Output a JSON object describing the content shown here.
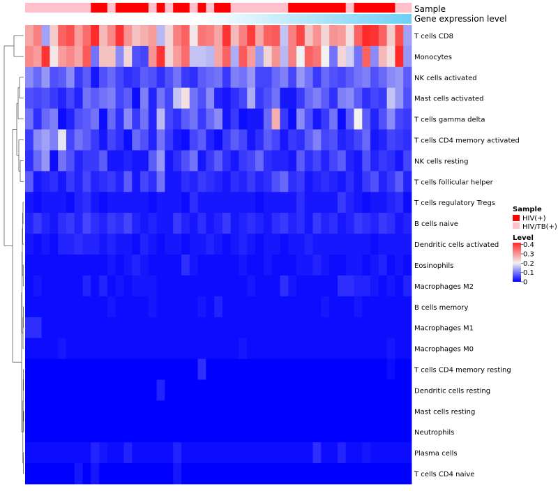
{
  "chart_data": {
    "type": "heatmap",
    "annotation_tracks": [
      {
        "name": "Sample",
        "kind": "categorical"
      },
      {
        "name": "Gene expression level",
        "kind": "continuous"
      }
    ],
    "sample_groups": [
      "HIV/TB(+)",
      "HIV/TB(+)",
      "HIV/TB(+)",
      "HIV/TB(+)",
      "HIV/TB(+)",
      "HIV/TB(+)",
      "HIV/TB(+)",
      "HIV/TB(+)",
      "HIV(+)",
      "HIV(+)",
      "HIV/TB(+)",
      "HIV(+)",
      "HIV(+)",
      "HIV(+)",
      "HIV(+)",
      "HIV/TB(+)",
      "HIV(+)",
      "HIV/TB(+)",
      "HIV(+)",
      "HIV(+)",
      "HIV/TB(+)",
      "HIV(+)",
      "HIV/TB(+)",
      "HIV(+)",
      "HIV(+)",
      "HIV/TB(+)",
      "HIV/TB(+)",
      "HIV/TB(+)",
      "HIV/TB(+)",
      "HIV/TB(+)",
      "HIV/TB(+)",
      "HIV/TB(+)",
      "HIV(+)",
      "HIV(+)",
      "HIV(+)",
      "HIV(+)",
      "HIV(+)",
      "HIV(+)",
      "HIV(+)",
      "HIV/TB(+)",
      "HIV(+)",
      "HIV(+)",
      "HIV(+)",
      "HIV(+)",
      "HIV(+)",
      "HIV/TB(+)",
      "HIV/TB(+)"
    ],
    "gene_expression_level": "increasing left to right",
    "rows": [
      "T cells CD8",
      "Monocytes",
      "NK cells activated",
      "Mast cells activated",
      "T cells gamma delta",
      "T cells CD4 memory activated",
      "NK cells resting",
      "T cells follicular helper",
      "T cells regulatory  Tregs",
      "B cells naive",
      "Dendritic cells activated",
      "Eosinophils",
      "Macrophages M2",
      "B cells memory",
      "Macrophages M1",
      "Macrophages M0",
      "T cells CD4 memory resting",
      "Dendritic cells resting",
      "Mast cells resting",
      "Neutrophils",
      "Plasma cells",
      "T cells CD4 naive"
    ],
    "n_columns": 47,
    "colorscale": {
      "title": "Level",
      "ticks": [
        "0.4",
        "0.3",
        "0.2",
        "0.1",
        "0"
      ],
      "tick_values": [
        0.4,
        0.3,
        0.2,
        0.1,
        0
      ],
      "range": [
        0,
        0.42
      ],
      "colors": [
        "#0000ff",
        "#f2f2f2",
        "#ff2a2a"
      ]
    },
    "values": [
      [
        0.29,
        0.33,
        0.14,
        0.25,
        0.36,
        0.38,
        0.3,
        0.35,
        0.42,
        0.27,
        0.32,
        0.41,
        0.31,
        0.26,
        0.28,
        0.3,
        0.16,
        0.24,
        0.33,
        0.36,
        0.22,
        0.34,
        0.33,
        0.29,
        0.41,
        0.27,
        0.33,
        0.4,
        0.29,
        0.36,
        0.37,
        0.17,
        0.33,
        0.39,
        0.26,
        0.31,
        0.24,
        0.31,
        0.3,
        0.23,
        0.36,
        0.42,
        0.41,
        0.36,
        0.25,
        0.38,
        0.14
      ],
      [
        0.32,
        0.3,
        0.41,
        0.22,
        0.3,
        0.32,
        0.29,
        0.37,
        0.1,
        0.26,
        0.26,
        0.12,
        0.24,
        0.07,
        0.06,
        0.31,
        0.41,
        0.24,
        0.3,
        0.35,
        0.17,
        0.17,
        0.16,
        0.29,
        0.36,
        0.15,
        0.37,
        0.3,
        0.13,
        0.24,
        0.31,
        0.16,
        0.33,
        0.21,
        0.36,
        0.34,
        0.21,
        0.1,
        0.24,
        0.18,
        0.1,
        0.36,
        0.12,
        0.27,
        0.23,
        0.42,
        0.13
      ],
      [
        0.12,
        0.09,
        0.13,
        0.07,
        0.08,
        0.12,
        0.05,
        0.08,
        0.02,
        0.07,
        0.09,
        0.06,
        0.04,
        0.05,
        0.08,
        0.07,
        0.04,
        0.07,
        0.1,
        0.05,
        0.04,
        0.08,
        0.09,
        0.1,
        0.05,
        0.11,
        0.1,
        0.13,
        0.06,
        0.06,
        0.09,
        0.11,
        0.06,
        0.13,
        0.1,
        0.05,
        0.09,
        0.07,
        0.06,
        0.08,
        0.1,
        0.11,
        0.07,
        0.09,
        0.12,
        0.13,
        0.08
      ],
      [
        0.07,
        0.06,
        0.07,
        0.05,
        0.03,
        0.06,
        0.03,
        0.1,
        0.08,
        0.1,
        0.11,
        0.06,
        0.08,
        0.01,
        0.11,
        0.03,
        0.1,
        0.06,
        0.17,
        0.23,
        0.1,
        0.07,
        0.12,
        0.03,
        0.02,
        0.04,
        0.06,
        0.15,
        0.05,
        0.07,
        0.1,
        0.02,
        0.02,
        0.05,
        0.09,
        0.11,
        0.08,
        0.04,
        0.11,
        0.12,
        0.08,
        0.04,
        0.06,
        0.05,
        0.17,
        0.13,
        0.07
      ],
      [
        0.1,
        0.04,
        0.09,
        0.11,
        0.01,
        0.03,
        0.07,
        0.08,
        0.1,
        0.01,
        0.09,
        0.04,
        0.12,
        0.05,
        0.1,
        0.03,
        0.16,
        0.06,
        0.04,
        0.08,
        0.1,
        0.05,
        0.09,
        0.12,
        0.02,
        0.05,
        0.01,
        0.02,
        0.02,
        0.09,
        0.28,
        0.05,
        0.01,
        0.12,
        0.07,
        0.02,
        0.05,
        0.1,
        0.01,
        0.08,
        0.21,
        0.08,
        0.03,
        0.07,
        0.12,
        0.06,
        0.05
      ],
      [
        0.05,
        0.12,
        0.14,
        0.11,
        0.2,
        0.06,
        0.1,
        0.08,
        0.05,
        0.02,
        0.06,
        0.04,
        0.01,
        0.09,
        0.07,
        0.03,
        0.1,
        0.05,
        0.02,
        0.01,
        0.06,
        0.08,
        0.03,
        0.01,
        0.05,
        0.08,
        0.06,
        0.02,
        0.04,
        0.08,
        0.06,
        0.02,
        0.05,
        0.04,
        0.08,
        0.11,
        0.06,
        0.07,
        0.03,
        0.04,
        0.06,
        0.09,
        0.02,
        0.03,
        0.06,
        0.05,
        0.04
      ],
      [
        0.04,
        0.09,
        0.13,
        0.01,
        0.1,
        0.07,
        0.03,
        0.05,
        0.05,
        0.08,
        0.02,
        0.02,
        0.03,
        0.02,
        0.02,
        0.08,
        0.13,
        0.02,
        0.04,
        0.07,
        0.1,
        0.02,
        0.05,
        0.08,
        0.04,
        0.02,
        0.05,
        0.06,
        0.09,
        0.04,
        0.03,
        0.03,
        0.02,
        0.08,
        0.04,
        0.06,
        0.03,
        0.06,
        0.08,
        0.03,
        0.02,
        0.07,
        0.03,
        0.05,
        0.04,
        0.02,
        0.06
      ],
      [
        0.08,
        0.02,
        0.03,
        0.04,
        0.02,
        0.05,
        0.03,
        0.06,
        0.03,
        0.04,
        0.05,
        0.03,
        0.08,
        0.02,
        0.06,
        0.04,
        0.1,
        0.02,
        0.02,
        0.04,
        0.03,
        0.05,
        0.04,
        0.03,
        0.02,
        0.04,
        0.03,
        0.05,
        0.03,
        0.04,
        0.07,
        0.09,
        0.04,
        0.05,
        0.02,
        0.03,
        0.04,
        0.03,
        0.02,
        0.04,
        0.02,
        0.05,
        0.07,
        0.03,
        0.05,
        0.08,
        0.03
      ],
      [
        0.02,
        0.01,
        0.02,
        0.02,
        0.02,
        0.01,
        0.03,
        0.04,
        0.02,
        0.01,
        0.02,
        0.02,
        0.02,
        0.02,
        0.02,
        0.01,
        0.02,
        0.02,
        0.02,
        0.01,
        0.04,
        0.02,
        0.02,
        0.02,
        0.02,
        0.02,
        0.02,
        0.02,
        0.01,
        0.02,
        0.02,
        0.02,
        0.02,
        0.04,
        0.02,
        0.02,
        0.02,
        0.02,
        0.05,
        0.03,
        0.02,
        0.01,
        0.02,
        0.02,
        0.03,
        0.04,
        0.01
      ],
      [
        0.03,
        0.05,
        0.03,
        0.02,
        0.04,
        0.05,
        0.03,
        0.06,
        0.04,
        0.03,
        0.05,
        0.04,
        0.06,
        0.03,
        0.02,
        0.03,
        0.02,
        0.02,
        0.05,
        0.03,
        0.02,
        0.04,
        0.02,
        0.03,
        0.05,
        0.02,
        0.03,
        0.04,
        0.03,
        0.02,
        0.04,
        0.05,
        0.03,
        0.04,
        0.02,
        0.05,
        0.03,
        0.04,
        0.02,
        0.03,
        0.05,
        0.04,
        0.03,
        0.05,
        0.04,
        0.02,
        0.03
      ],
      [
        0.02,
        0.01,
        0.02,
        0.01,
        0.03,
        0.03,
        0.04,
        0.03,
        0.03,
        0.02,
        0.03,
        0.02,
        0.02,
        0.01,
        0.03,
        0.02,
        0.01,
        0.02,
        0.02,
        0.01,
        0.02,
        0.02,
        0.03,
        0.02,
        0.01,
        0.02,
        0.03,
        0.02,
        0.01,
        0.02,
        0.02,
        0.01,
        0.02,
        0.02,
        0.03,
        0.02,
        0.02,
        0.02,
        0.02,
        0.02,
        0.02,
        0.02,
        0.01,
        0.02,
        0.02,
        0.02,
        0.02
      ],
      [
        0.01,
        0.01,
        0.01,
        0.01,
        0.01,
        0.01,
        0.01,
        0.01,
        0.01,
        0.01,
        0.02,
        0.01,
        0.02,
        0.03,
        0.02,
        0.01,
        0.01,
        0.01,
        0.01,
        0.04,
        0.02,
        0.01,
        0.01,
        0.01,
        0.01,
        0.01,
        0.02,
        0.01,
        0.01,
        0.02,
        0.01,
        0.01,
        0.01,
        0.02,
        0.02,
        0.03,
        0.02,
        0.01,
        0.01,
        0.02,
        0.02,
        0.01,
        0.02,
        0.03,
        0.01,
        0.02,
        0.01
      ],
      [
        0.01,
        0.02,
        0.01,
        0.01,
        0.01,
        0.01,
        0.01,
        0.03,
        0.01,
        0.03,
        0.01,
        0.02,
        0.01,
        0.02,
        0.02,
        0.02,
        0.01,
        0.01,
        0.01,
        0.01,
        0.01,
        0.01,
        0.01,
        0.01,
        0.01,
        0.01,
        0.01,
        0.02,
        0.01,
        0.01,
        0.01,
        0.04,
        0.02,
        0.01,
        0.01,
        0.01,
        0.01,
        0.01,
        0.04,
        0.04,
        0.03,
        0.03,
        0.02,
        0.01,
        0.02,
        0.01,
        0.03
      ],
      [
        0.01,
        0.01,
        0.01,
        0.01,
        0.01,
        0.01,
        0.01,
        0.01,
        0.01,
        0.01,
        0.02,
        0.01,
        0.01,
        0.01,
        0.01,
        0.02,
        0.01,
        0.01,
        0.01,
        0.01,
        0.01,
        0.02,
        0.01,
        0.03,
        0.01,
        0.01,
        0.01,
        0.01,
        0.01,
        0.01,
        0.01,
        0.01,
        0.01,
        0.01,
        0.01,
        0.01,
        0.02,
        0.01,
        0.01,
        0.01,
        0.02,
        0.01,
        0.01,
        0.01,
        0.01,
        0.01,
        0.01
      ],
      [
        0.04,
        0.04,
        0.01,
        0.01,
        0.01,
        0.01,
        0.01,
        0.01,
        0.01,
        0.01,
        0.01,
        0.01,
        0.01,
        0.01,
        0.01,
        0.01,
        0.01,
        0.01,
        0.01,
        0.01,
        0.01,
        0.01,
        0.01,
        0.01,
        0.01,
        0.01,
        0.01,
        0.01,
        0.01,
        0.01,
        0.01,
        0.01,
        0.01,
        0.01,
        0.01,
        0.01,
        0.01,
        0.01,
        0.01,
        0.01,
        0.01,
        0.01,
        0.01,
        0.01,
        0.01,
        0.01,
        0.01
      ],
      [
        0.01,
        0.01,
        0.01,
        0.01,
        0.02,
        0.01,
        0.01,
        0.01,
        0.01,
        0.01,
        0.01,
        0.01,
        0.01,
        0.01,
        0.01,
        0.01,
        0.01,
        0.01,
        0.01,
        0.01,
        0.01,
        0.01,
        0.01,
        0.01,
        0.01,
        0.01,
        0.02,
        0.01,
        0.01,
        0.01,
        0.01,
        0.01,
        0.01,
        0.01,
        0.01,
        0.01,
        0.01,
        0.01,
        0.01,
        0.01,
        0.01,
        0.01,
        0.01,
        0.01,
        0.02,
        0.01,
        0.01
      ],
      [
        0.0,
        0.0,
        0.0,
        0.0,
        0.0,
        0.0,
        0.0,
        0.0,
        0.0,
        0.0,
        0.0,
        0.0,
        0.0,
        0.0,
        0.0,
        0.0,
        0.0,
        0.0,
        0.0,
        0.0,
        0.0,
        0.04,
        0.0,
        0.0,
        0.0,
        0.0,
        0.0,
        0.0,
        0.0,
        0.0,
        0.0,
        0.0,
        0.0,
        0.0,
        0.0,
        0.0,
        0.0,
        0.0,
        0.0,
        0.0,
        0.0,
        0.0,
        0.0,
        0.0,
        0.01,
        0.0,
        0.0
      ],
      [
        0.0,
        0.0,
        0.0,
        0.0,
        0.0,
        0.0,
        0.0,
        0.0,
        0.0,
        0.0,
        0.0,
        0.0,
        0.0,
        0.0,
        0.0,
        0.0,
        0.03,
        0.0,
        0.0,
        0.0,
        0.0,
        0.0,
        0.0,
        0.0,
        0.0,
        0.0,
        0.0,
        0.0,
        0.0,
        0.0,
        0.0,
        0.0,
        0.0,
        0.0,
        0.0,
        0.0,
        0.0,
        0.0,
        0.0,
        0.0,
        0.0,
        0.0,
        0.0,
        0.0,
        0.0,
        0.0,
        0.0
      ],
      [
        0.0,
        0.0,
        0.0,
        0.0,
        0.0,
        0.0,
        0.0,
        0.0,
        0.0,
        0.0,
        0.0,
        0.0,
        0.0,
        0.0,
        0.0,
        0.0,
        0.0,
        0.0,
        0.0,
        0.0,
        0.0,
        0.0,
        0.0,
        0.0,
        0.0,
        0.0,
        0.0,
        0.0,
        0.0,
        0.0,
        0.0,
        0.0,
        0.0,
        0.0,
        0.0,
        0.0,
        0.0,
        0.0,
        0.0,
        0.0,
        0.0,
        0.0,
        0.0,
        0.0,
        0.0,
        0.0,
        0.0
      ],
      [
        0.0,
        0.0,
        0.0,
        0.0,
        0.0,
        0.0,
        0.0,
        0.0,
        0.0,
        0.0,
        0.0,
        0.0,
        0.0,
        0.0,
        0.0,
        0.0,
        0.0,
        0.0,
        0.0,
        0.0,
        0.0,
        0.0,
        0.0,
        0.0,
        0.0,
        0.0,
        0.0,
        0.0,
        0.0,
        0.0,
        0.0,
        0.0,
        0.0,
        0.0,
        0.0,
        0.0,
        0.0,
        0.0,
        0.0,
        0.0,
        0.0,
        0.0,
        0.0,
        0.0,
        0.0,
        0.0,
        0.0
      ],
      [
        0.01,
        0.01,
        0.01,
        0.01,
        0.01,
        0.01,
        0.01,
        0.01,
        0.03,
        0.02,
        0.01,
        0.01,
        0.03,
        0.01,
        0.01,
        0.01,
        0.01,
        0.01,
        0.03,
        0.01,
        0.01,
        0.01,
        0.01,
        0.01,
        0.01,
        0.01,
        0.01,
        0.01,
        0.01,
        0.01,
        0.01,
        0.01,
        0.01,
        0.01,
        0.01,
        0.04,
        0.01,
        0.01,
        0.03,
        0.01,
        0.01,
        0.02,
        0.01,
        0.01,
        0.01,
        0.01,
        0.01
      ],
      [
        0.0,
        0.0,
        0.0,
        0.0,
        0.0,
        0.0,
        0.02,
        0.0,
        0.02,
        0.0,
        0.0,
        0.0,
        0.0,
        0.0,
        0.0,
        0.0,
        0.0,
        0.0,
        0.02,
        0.0,
        0.0,
        0.0,
        0.0,
        0.0,
        0.0,
        0.0,
        0.0,
        0.0,
        0.0,
        0.0,
        0.0,
        0.0,
        0.0,
        0.0,
        0.0,
        0.0,
        0.0,
        0.0,
        0.0,
        0.0,
        0.0,
        0.0,
        0.0,
        0.0,
        0.0,
        0.0,
        0.0
      ]
    ],
    "legend": {
      "sample_title": "Sample",
      "sample_entries": [
        {
          "label": "HIV(+)",
          "color": "#ff0000"
        },
        {
          "label": "HIV/TB(+)",
          "color": "#ffc0cb"
        }
      ]
    },
    "track_colors": {
      "expression_low": "#ffffff",
      "expression_high": "#6ecff6"
    }
  }
}
